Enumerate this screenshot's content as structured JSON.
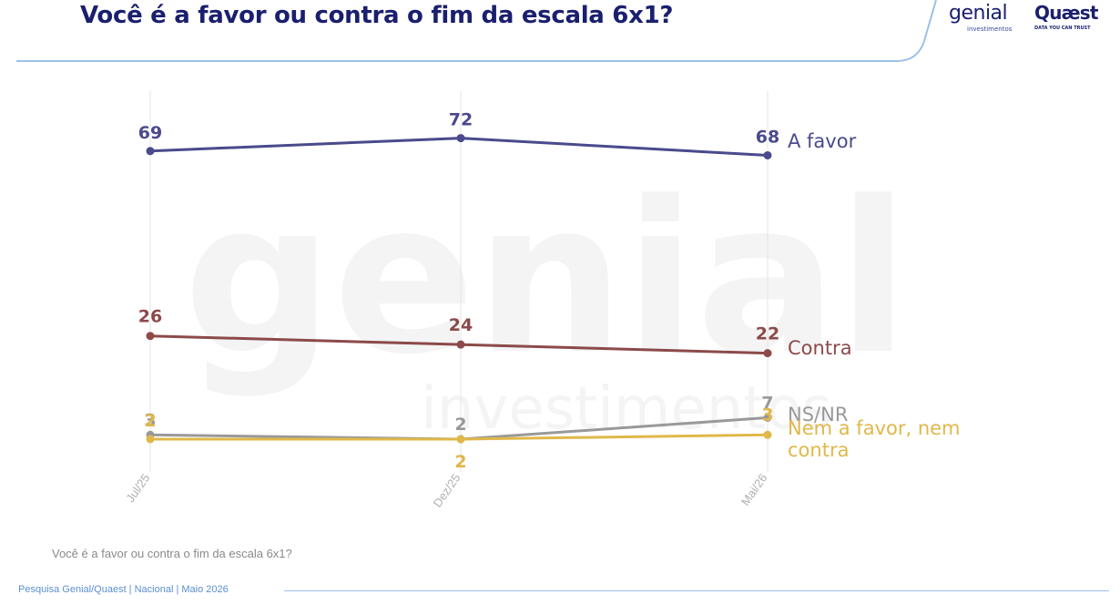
{
  "header": {
    "title": "Você é a favor ou contra o fim da escala 6x1?",
    "logo_genial": "genial",
    "logo_genial_sub": "investimentos",
    "logo_quaest": "Quæst",
    "logo_quaest_sub": "DATA YOU CAN TRUST"
  },
  "watermark": {
    "line1": "genial",
    "line2": "investimentos"
  },
  "chart_data": {
    "type": "line",
    "categories": [
      "Jul/25",
      "Dez/25",
      "Mai/26"
    ],
    "series": [
      {
        "name": "A favor",
        "values": [
          69,
          72,
          68
        ],
        "color": "#4a4a8c"
      },
      {
        "name": "Contra",
        "values": [
          26,
          24,
          22
        ],
        "color": "#8c4a4a"
      },
      {
        "name": "NS/NR",
        "values": [
          3,
          2,
          7
        ],
        "color": "#999999"
      },
      {
        "name": "Nem a favor, nem contra",
        "values": [
          2,
          2,
          3
        ],
        "color": "#e0b84a"
      }
    ],
    "title": "",
    "xlabel": "",
    "ylabel": "",
    "ylim": [
      0,
      75
    ],
    "grid": "vertical"
  },
  "question": "Você é a favor ou contra o fim da escala 6x1?",
  "footer": "Pesquisa Genial/Quaest | Nacional | Maio 2026",
  "colors": {
    "title": "#1a1f6e",
    "footer": "#5a8fd0",
    "header_line": "#9cc0e8"
  }
}
